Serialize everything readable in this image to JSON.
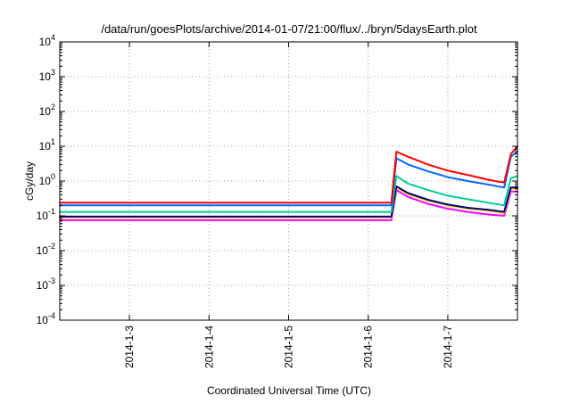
{
  "chart_data": {
    "type": "line",
    "title": "/data/run/goesPlots/archive/2014-01-07/21:00/flux/../bryn/5daysEarth.plot",
    "xlabel": "Coordinated Universal Time (UTC)",
    "ylabel": "cGy/day",
    "yscale": "log",
    "ylim": [
      0.0001,
      10000
    ],
    "xlim": [
      "2014-01-02T03:00",
      "2014-01-07T21:00"
    ],
    "grid": true,
    "legend": "none",
    "y_ticks": [
      {
        "base": "10",
        "exp": "-4",
        "value": 0.0001
      },
      {
        "base": "10",
        "exp": "-3",
        "value": 0.001
      },
      {
        "base": "10",
        "exp": "-2",
        "value": 0.01
      },
      {
        "base": "10",
        "exp": "-1",
        "value": 0.1
      },
      {
        "base": "10",
        "exp": "0",
        "value": 1
      },
      {
        "base": "10",
        "exp": "1",
        "value": 10
      },
      {
        "base": "10",
        "exp": "2",
        "value": 100
      },
      {
        "base": "10",
        "exp": "3",
        "value": 1000
      },
      {
        "base": "10",
        "exp": "4",
        "value": 10000
      }
    ],
    "x_ticks": [
      {
        "label": "2014-1-3",
        "date": "2014-01-03T00:00"
      },
      {
        "label": "2014-1-4",
        "date": "2014-01-04T00:00"
      },
      {
        "label": "2014-1-5",
        "date": "2014-01-05T00:00"
      },
      {
        "label": "2014-1-6",
        "date": "2014-01-06T00:00"
      },
      {
        "label": "2014-1-7",
        "date": "2014-01-07T00:00"
      }
    ],
    "series": [
      {
        "color": "#ff00ff",
        "x": [
          "2014-01-02T03:00",
          "2014-01-02T12:00",
          "2014-01-03T00:00",
          "2014-01-03T12:00",
          "2014-01-04T00:00",
          "2014-01-04T12:00",
          "2014-01-05T00:00",
          "2014-01-05T12:00",
          "2014-01-06T00:00",
          "2014-01-06T07:00",
          "2014-01-06T08:30",
          "2014-01-06T12:00",
          "2014-01-06T18:00",
          "2014-01-07T00:00",
          "2014-01-07T06:00",
          "2014-01-07T12:00",
          "2014-01-07T17:00",
          "2014-01-07T19:00",
          "2014-01-07T21:00"
        ],
        "values": [
          0.075,
          0.075,
          0.075,
          0.075,
          0.075,
          0.075,
          0.075,
          0.075,
          0.075,
          0.075,
          0.55,
          0.35,
          0.22,
          0.16,
          0.13,
          0.11,
          0.1,
          0.5,
          0.5
        ]
      },
      {
        "color": "#ffd700",
        "x": [
          "2014-01-02T03:00",
          "2014-01-02T12:00",
          "2014-01-03T00:00",
          "2014-01-03T12:00",
          "2014-01-04T00:00",
          "2014-01-04T12:00",
          "2014-01-05T00:00",
          "2014-01-05T12:00",
          "2014-01-06T00:00",
          "2014-01-06T07:00",
          "2014-01-06T08:30",
          "2014-01-06T12:00",
          "2014-01-06T18:00",
          "2014-01-07T00:00",
          "2014-01-07T06:00",
          "2014-01-07T12:00",
          "2014-01-07T17:00",
          "2014-01-07T19:00",
          "2014-01-07T21:00"
        ],
        "values": [
          0.09,
          0.09,
          0.09,
          0.09,
          0.09,
          0.09,
          0.09,
          0.09,
          0.09,
          0.09,
          0.65,
          0.42,
          0.27,
          0.2,
          0.16,
          0.14,
          0.12,
          0.6,
          0.6
        ]
      },
      {
        "color": "#000080",
        "x": [
          "2014-01-02T03:00",
          "2014-01-02T12:00",
          "2014-01-03T00:00",
          "2014-01-03T12:00",
          "2014-01-04T00:00",
          "2014-01-04T12:00",
          "2014-01-05T00:00",
          "2014-01-05T12:00",
          "2014-01-06T00:00",
          "2014-01-06T07:00",
          "2014-01-06T08:30",
          "2014-01-06T12:00",
          "2014-01-06T18:00",
          "2014-01-07T00:00",
          "2014-01-07T06:00",
          "2014-01-07T12:00",
          "2014-01-07T17:00",
          "2014-01-07T19:00",
          "2014-01-07T21:00"
        ],
        "values": [
          0.095,
          0.095,
          0.095,
          0.095,
          0.095,
          0.095,
          0.095,
          0.095,
          0.095,
          0.095,
          0.7,
          0.45,
          0.29,
          0.21,
          0.17,
          0.15,
          0.13,
          0.65,
          0.65
        ]
      },
      {
        "color": "#00cc99",
        "x": [
          "2014-01-02T03:00",
          "2014-01-02T12:00",
          "2014-01-03T00:00",
          "2014-01-03T12:00",
          "2014-01-04T00:00",
          "2014-01-04T12:00",
          "2014-01-05T00:00",
          "2014-01-05T12:00",
          "2014-01-06T00:00",
          "2014-01-06T07:00",
          "2014-01-06T08:30",
          "2014-01-06T12:00",
          "2014-01-06T18:00",
          "2014-01-07T00:00",
          "2014-01-07T06:00",
          "2014-01-07T12:00",
          "2014-01-07T17:00",
          "2014-01-07T19:00",
          "2014-01-07T21:00"
        ],
        "values": [
          0.13,
          0.13,
          0.13,
          0.13,
          0.13,
          0.13,
          0.13,
          0.13,
          0.13,
          0.13,
          1.4,
          0.85,
          0.55,
          0.38,
          0.3,
          0.24,
          0.2,
          1.2,
          1.4
        ]
      },
      {
        "color": "#0066ff",
        "x": [
          "2014-01-02T03:00",
          "2014-01-02T12:00",
          "2014-01-03T00:00",
          "2014-01-03T12:00",
          "2014-01-04T00:00",
          "2014-01-04T12:00",
          "2014-01-05T00:00",
          "2014-01-05T12:00",
          "2014-01-06T00:00",
          "2014-01-06T07:00",
          "2014-01-06T08:30",
          "2014-01-06T12:00",
          "2014-01-06T18:00",
          "2014-01-07T00:00",
          "2014-01-07T06:00",
          "2014-01-07T12:00",
          "2014-01-07T17:00",
          "2014-01-07T19:00",
          "2014-01-07T21:00"
        ],
        "values": [
          0.2,
          0.2,
          0.2,
          0.2,
          0.2,
          0.2,
          0.2,
          0.2,
          0.2,
          0.2,
          4.5,
          3.0,
          1.9,
          1.3,
          1.0,
          0.8,
          0.65,
          5.0,
          7.0
        ]
      },
      {
        "color": "#ff0000",
        "x": [
          "2014-01-02T03:00",
          "2014-01-02T12:00",
          "2014-01-03T00:00",
          "2014-01-03T12:00",
          "2014-01-04T00:00",
          "2014-01-04T12:00",
          "2014-01-05T00:00",
          "2014-01-05T12:00",
          "2014-01-06T00:00",
          "2014-01-06T07:00",
          "2014-01-06T08:30",
          "2014-01-06T12:00",
          "2014-01-06T18:00",
          "2014-01-07T00:00",
          "2014-01-07T06:00",
          "2014-01-07T12:00",
          "2014-01-07T17:00",
          "2014-01-07T19:00",
          "2014-01-07T21:00"
        ],
        "values": [
          0.24,
          0.24,
          0.24,
          0.24,
          0.24,
          0.24,
          0.24,
          0.24,
          0.24,
          0.24,
          7.0,
          5.0,
          3.0,
          2.0,
          1.5,
          1.1,
          0.9,
          6.0,
          10.0
        ]
      }
    ]
  }
}
